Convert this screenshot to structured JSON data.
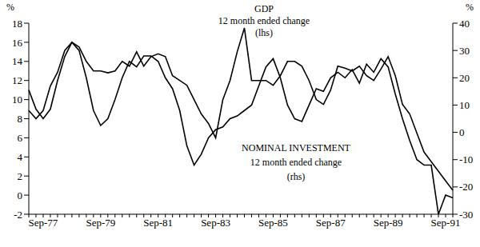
{
  "chart_data": {
    "type": "line",
    "ylabel": "%",
    "y2label": "%",
    "annotations": [
      {
        "lines": [
          "GDP",
          "12 month ended change",
          "(lhs)"
        ]
      },
      {
        "lines": [
          "NOMINAL INVESTMENT",
          "12 month ended change",
          "(rhs)"
        ]
      }
    ],
    "categories": [
      null,
      null,
      "Sep-77",
      null,
      null,
      null,
      null,
      null,
      null,
      null,
      "Sep-79",
      null,
      null,
      null,
      null,
      null,
      null,
      null,
      "Sep-81",
      null,
      null,
      null,
      null,
      null,
      null,
      null,
      "Sep-83",
      null,
      null,
      null,
      null,
      null,
      null,
      null,
      "Sep-85",
      null,
      null,
      null,
      null,
      null,
      null,
      null,
      "Sep-87",
      null,
      null,
      null,
      null,
      null,
      null,
      null,
      "Sep-89",
      null,
      null,
      null,
      null,
      null,
      null,
      null,
      "Sep-91",
      null
    ],
    "series": [
      {
        "name": "GDP",
        "color": "#000000",
        "values": [
          11,
          9,
          8,
          9,
          12,
          14.5,
          16,
          15.5,
          14,
          13,
          13,
          12.8,
          13,
          14,
          13.5,
          15,
          13.5,
          14.5,
          14.8,
          14.5,
          12.5,
          12,
          11.5,
          10,
          8.5,
          7.5,
          6,
          10,
          12,
          15,
          17.5,
          12,
          12,
          12,
          11.5,
          12.5,
          14,
          14,
          13.5,
          12,
          10,
          9.5,
          11,
          13.5,
          13.3,
          13,
          13.5,
          12.5,
          12,
          13.2,
          14.5,
          12.5,
          9.5,
          8.5,
          6.5,
          4.5,
          3.5,
          2.5,
          1.5,
          0.5
        ]
      },
      {
        "name": "NOMINAL INVESTMENT",
        "color": "#000000",
        "axis": "y2",
        "values": [
          8,
          5,
          8,
          17,
          22,
          30,
          33,
          30,
          20,
          8,
          2.5,
          5,
          12,
          20,
          26,
          24,
          28,
          28,
          26,
          20,
          16,
          8,
          -5,
          -12,
          -8,
          -2,
          1,
          2,
          5,
          6,
          8,
          10,
          17,
          24,
          27,
          20,
          10,
          5,
          4,
          10,
          16,
          15,
          20,
          22,
          20,
          23,
          18,
          25,
          22,
          27,
          24,
          14,
          5,
          -3,
          -10,
          -12,
          -12,
          -30,
          -23,
          -24
        ]
      }
    ],
    "ylim": [
      -2,
      18
    ],
    "yticks": [
      -2,
      0,
      2,
      4,
      6,
      8,
      10,
      12,
      14,
      16,
      18
    ],
    "y2lim": [
      -30,
      40
    ],
    "y2ticks": [
      -30,
      -20,
      -10,
      0,
      10,
      20,
      30,
      40
    ],
    "grid": false
  }
}
